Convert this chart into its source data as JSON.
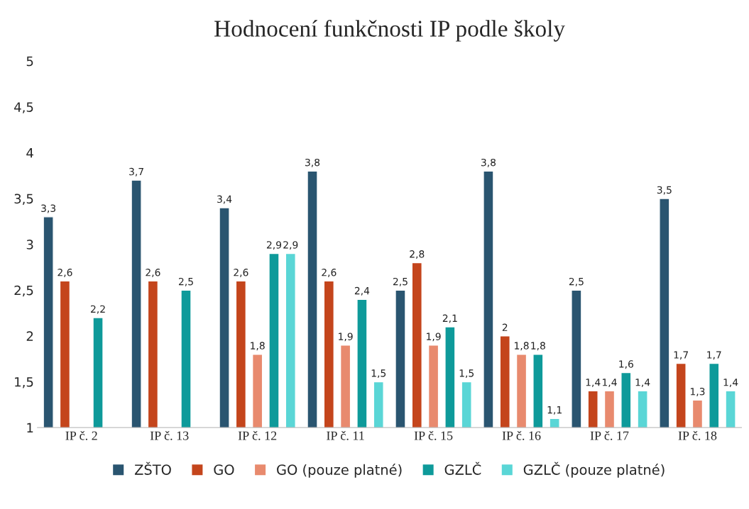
{
  "chart_data": {
    "type": "bar",
    "title": "Hodnocení funkčnosti IP podle školy",
    "categories": [
      "IP č. 2",
      "IP č. 13",
      "IP č. 12",
      "IP č. 11",
      "IP č. 15",
      "IP č. 16",
      "IP č. 17",
      "IP č. 18"
    ],
    "series": [
      {
        "name": "ZŠTO",
        "color": "#2a5570",
        "values": [
          3.3,
          3.7,
          3.4,
          3.8,
          2.5,
          3.8,
          2.5,
          3.5
        ],
        "value_labels": [
          "3,3",
          "3,7",
          "3,4",
          "3,8",
          "2,5",
          "3,8",
          "2,5",
          "3,5"
        ]
      },
      {
        "name": "GO",
        "color": "#c4451c",
        "values": [
          2.6,
          2.6,
          2.6,
          2.6,
          2.8,
          2,
          1.4,
          1.7
        ],
        "value_labels": [
          "2,6",
          "2,6",
          "2,6",
          "2,6",
          "2,8",
          "2",
          "1,4",
          "1,7"
        ]
      },
      {
        "name": "GO (pouze platné)",
        "color": "#e88a6e",
        "values": [
          null,
          null,
          1.8,
          1.9,
          1.9,
          1.8,
          1.4,
          1.3
        ],
        "value_labels": [
          null,
          null,
          "1,8",
          "1,9",
          "1,9",
          "1,8",
          "1,4",
          "1,3"
        ]
      },
      {
        "name": "GZLČ",
        "color": "#0e9a9a",
        "values": [
          2.2,
          2.5,
          2.9,
          2.4,
          2.1,
          1.8,
          1.6,
          1.7
        ],
        "value_labels": [
          "2,2",
          "2,5",
          "2,9",
          "2,4",
          "2,1",
          "1,8",
          "1,6",
          "1,7"
        ]
      },
      {
        "name": "GZLČ (pouze platné)",
        "color": "#5ad6d6",
        "values": [
          null,
          null,
          2.9,
          1.5,
          1.5,
          1.1,
          1.4,
          1.4
        ],
        "value_labels": [
          null,
          null,
          "2,9",
          "1,5",
          "1,5",
          "1,1",
          "1,4",
          "1,4"
        ]
      }
    ],
    "ylim": [
      1,
      5
    ],
    "yticks": [
      1,
      {
        "value": 1.5,
        "label": "1,5"
      },
      2,
      {
        "value": 2.5,
        "label": "2,5"
      },
      3,
      {
        "value": 3.5,
        "label": "3,5"
      },
      4,
      {
        "value": 4.5,
        "label": "4,5"
      },
      5
    ],
    "grid": false,
    "legend": "bottom"
  }
}
